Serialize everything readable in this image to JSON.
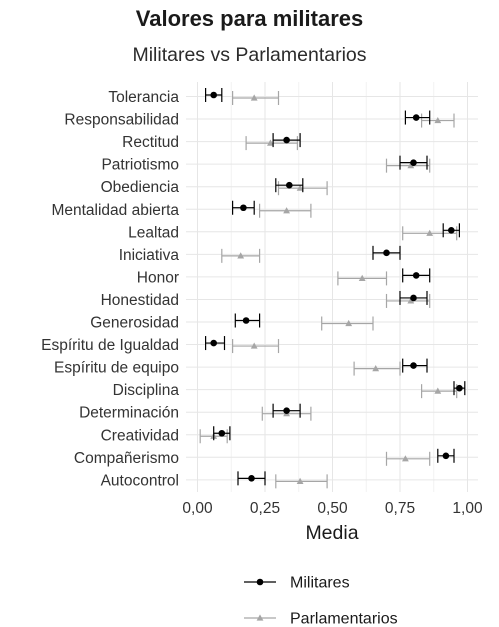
{
  "chart_data": {
    "type": "errorbar",
    "title": "Valores para militares",
    "subtitle": "Militares vs Parlamentarios",
    "xlabel": "Media",
    "ylabel": "",
    "xlim": [
      0,
      1
    ],
    "x_ticks": [
      "0,00",
      "0,25",
      "0,50",
      "0,75",
      "1,00"
    ],
    "x_tick_values": [
      0,
      0.25,
      0.5,
      0.75,
      1.0
    ],
    "grid": true,
    "legend_position": "bottom",
    "categories": [
      "Tolerancia",
      "Responsabilidad",
      "Rectitud",
      "Patriotismo",
      "Obediencia",
      "Mentalidad abierta",
      "Lealtad",
      "Iniciativa",
      "Honor",
      "Honestidad",
      "Generosidad",
      "Espíritu de Igualdad",
      "Espíritu de equipo",
      "Disciplina",
      "Determinación",
      "Creatividad",
      "Compañerismo",
      "Autocontrol"
    ],
    "series": [
      {
        "name": "Militares",
        "color": "#000000",
        "marker": "circle",
        "mean": [
          0.06,
          0.81,
          0.33,
          0.8,
          0.34,
          0.17,
          0.94,
          0.7,
          0.81,
          0.8,
          0.18,
          0.06,
          0.8,
          0.97,
          0.33,
          0.09,
          0.92,
          0.2
        ],
        "lower": [
          0.03,
          0.77,
          0.28,
          0.75,
          0.29,
          0.13,
          0.91,
          0.65,
          0.76,
          0.75,
          0.14,
          0.03,
          0.76,
          0.95,
          0.28,
          0.06,
          0.89,
          0.15
        ],
        "upper": [
          0.09,
          0.86,
          0.38,
          0.85,
          0.39,
          0.21,
          0.97,
          0.75,
          0.86,
          0.85,
          0.23,
          0.1,
          0.85,
          0.99,
          0.38,
          0.12,
          0.95,
          0.25
        ]
      },
      {
        "name": "Parlamentarios",
        "color": "#a6a6a6",
        "marker": "triangle",
        "mean": [
          0.21,
          0.89,
          0.27,
          0.79,
          0.38,
          0.33,
          0.86,
          0.16,
          0.61,
          0.79,
          0.56,
          0.21,
          0.66,
          0.89,
          0.33,
          0.06,
          0.77,
          0.38
        ],
        "lower": [
          0.13,
          0.83,
          0.18,
          0.7,
          0.3,
          0.23,
          0.76,
          0.09,
          0.52,
          0.7,
          0.46,
          0.13,
          0.58,
          0.83,
          0.24,
          0.01,
          0.7,
          0.29
        ],
        "upper": [
          0.3,
          0.95,
          0.37,
          0.86,
          0.48,
          0.42,
          0.96,
          0.23,
          0.7,
          0.86,
          0.65,
          0.3,
          0.75,
          0.96,
          0.42,
          0.11,
          0.86,
          0.48
        ]
      }
    ]
  }
}
